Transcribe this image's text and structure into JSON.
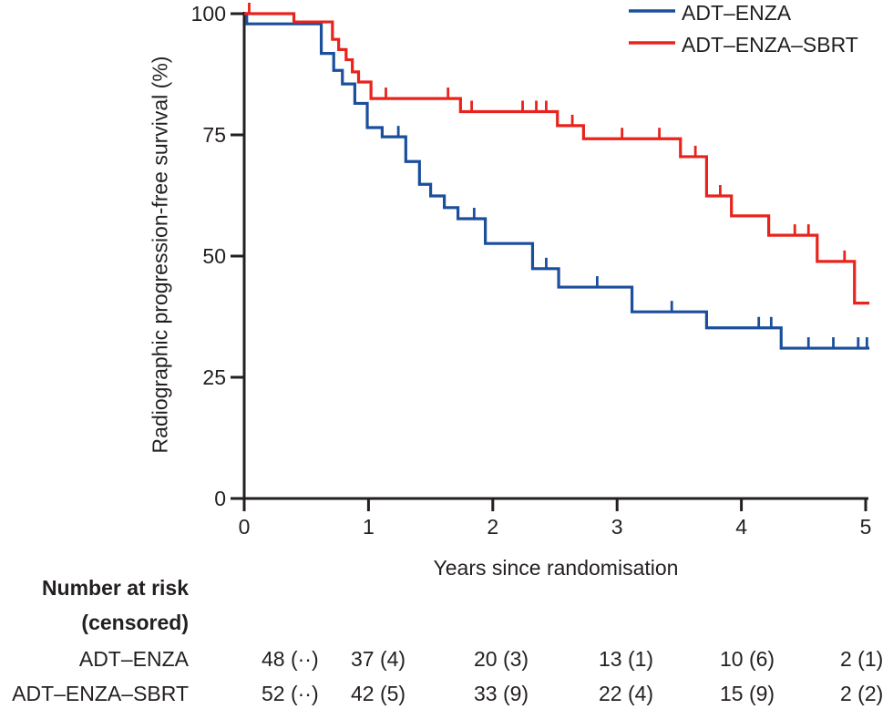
{
  "figure": {
    "legend": [
      {
        "label": "ADT–ENZA",
        "color": "#1b4f9c"
      },
      {
        "label": "ADT–ENZA–SBRT",
        "color": "#e8231c"
      }
    ],
    "y_axis": {
      "label": "Radiographic progression-free survival (%)",
      "ticks": [
        0,
        25,
        50,
        75,
        100
      ]
    },
    "x_axis": {
      "label": "Years since randomisation",
      "ticks": [
        0,
        1,
        2,
        3,
        4,
        5
      ]
    },
    "risk_table": {
      "header_line1": "Number at risk",
      "header_line2": "(censored)",
      "rows": [
        {
          "label": "ADT–ENZA",
          "values": [
            "48 (··)",
            "37 (4)",
            "20 (3)",
            "13 (1)",
            "10 (6)",
            "2 (1)"
          ]
        },
        {
          "label": "ADT–ENZA–SBRT",
          "values": [
            "52 (··)",
            "42 (5)",
            "33 (9)",
            "22 (4)",
            "15 (9)",
            "2 (2)"
          ]
        }
      ]
    }
  },
  "chart_data": {
    "type": "line",
    "subtype": "kaplan-meier-step",
    "title": "",
    "xlabel": "Years since randomisation",
    "ylabel": "Radiographic progression-free survival (%)",
    "xlim": [
      0,
      5.05
    ],
    "ylim": [
      0,
      100
    ],
    "grid": false,
    "legend_position": "top-right",
    "axis_color": "#231f20",
    "series": [
      {
        "name": "ADT–ENZA",
        "color": "#1b4f9c",
        "end_x": 5.03,
        "steps": [
          [
            0,
            100
          ],
          [
            0.02,
            97.9
          ],
          [
            0.62,
            91.8
          ],
          [
            0.72,
            88.3
          ],
          [
            0.79,
            85.5
          ],
          [
            0.89,
            81.5
          ],
          [
            0.99,
            76.5
          ],
          [
            1.11,
            74.6
          ],
          [
            1.3,
            69.5
          ],
          [
            1.41,
            64.8
          ],
          [
            1.5,
            62.4
          ],
          [
            1.61,
            60.0
          ],
          [
            1.72,
            57.7
          ],
          [
            1.94,
            52.6
          ],
          [
            2.32,
            47.4
          ],
          [
            2.53,
            43.6
          ],
          [
            3.12,
            38.5
          ],
          [
            3.72,
            35.2
          ],
          [
            4.32,
            31.0
          ]
        ],
        "censors": [
          [
            1.24,
            74.6
          ],
          [
            1.85,
            57.7
          ],
          [
            2.43,
            47.4
          ],
          [
            2.84,
            43.6
          ],
          [
            3.44,
            38.5
          ],
          [
            4.14,
            35.2
          ],
          [
            4.24,
            35.2
          ],
          [
            4.54,
            31.0
          ],
          [
            4.74,
            31.0
          ],
          [
            4.94,
            31.0
          ],
          [
            5.01,
            31.0
          ]
        ]
      },
      {
        "name": "ADT–ENZA–SBRT",
        "color": "#e8231c",
        "end_x": 5.03,
        "steps": [
          [
            0,
            100
          ],
          [
            0.4,
            98.3
          ],
          [
            0.71,
            94.7
          ],
          [
            0.76,
            92.6
          ],
          [
            0.82,
            90.5
          ],
          [
            0.87,
            88.0
          ],
          [
            0.92,
            85.9
          ],
          [
            1.02,
            82.5
          ],
          [
            1.74,
            79.8
          ],
          [
            2.52,
            76.9
          ],
          [
            2.73,
            74.2
          ],
          [
            3.51,
            70.5
          ],
          [
            3.72,
            62.4
          ],
          [
            3.92,
            58.3
          ],
          [
            4.22,
            54.3
          ],
          [
            4.61,
            48.9
          ],
          [
            4.91,
            40.3
          ]
        ],
        "censors": [
          [
            0.04,
            100
          ],
          [
            1.14,
            82.5
          ],
          [
            1.64,
            82.5
          ],
          [
            1.83,
            79.8
          ],
          [
            2.24,
            79.8
          ],
          [
            2.35,
            79.8
          ],
          [
            2.43,
            79.8
          ],
          [
            2.64,
            76.9
          ],
          [
            3.04,
            74.2
          ],
          [
            3.34,
            74.2
          ],
          [
            3.63,
            70.5
          ],
          [
            3.83,
            62.4
          ],
          [
            4.43,
            54.3
          ],
          [
            4.54,
            54.3
          ],
          [
            4.83,
            48.9
          ]
        ]
      }
    ]
  }
}
